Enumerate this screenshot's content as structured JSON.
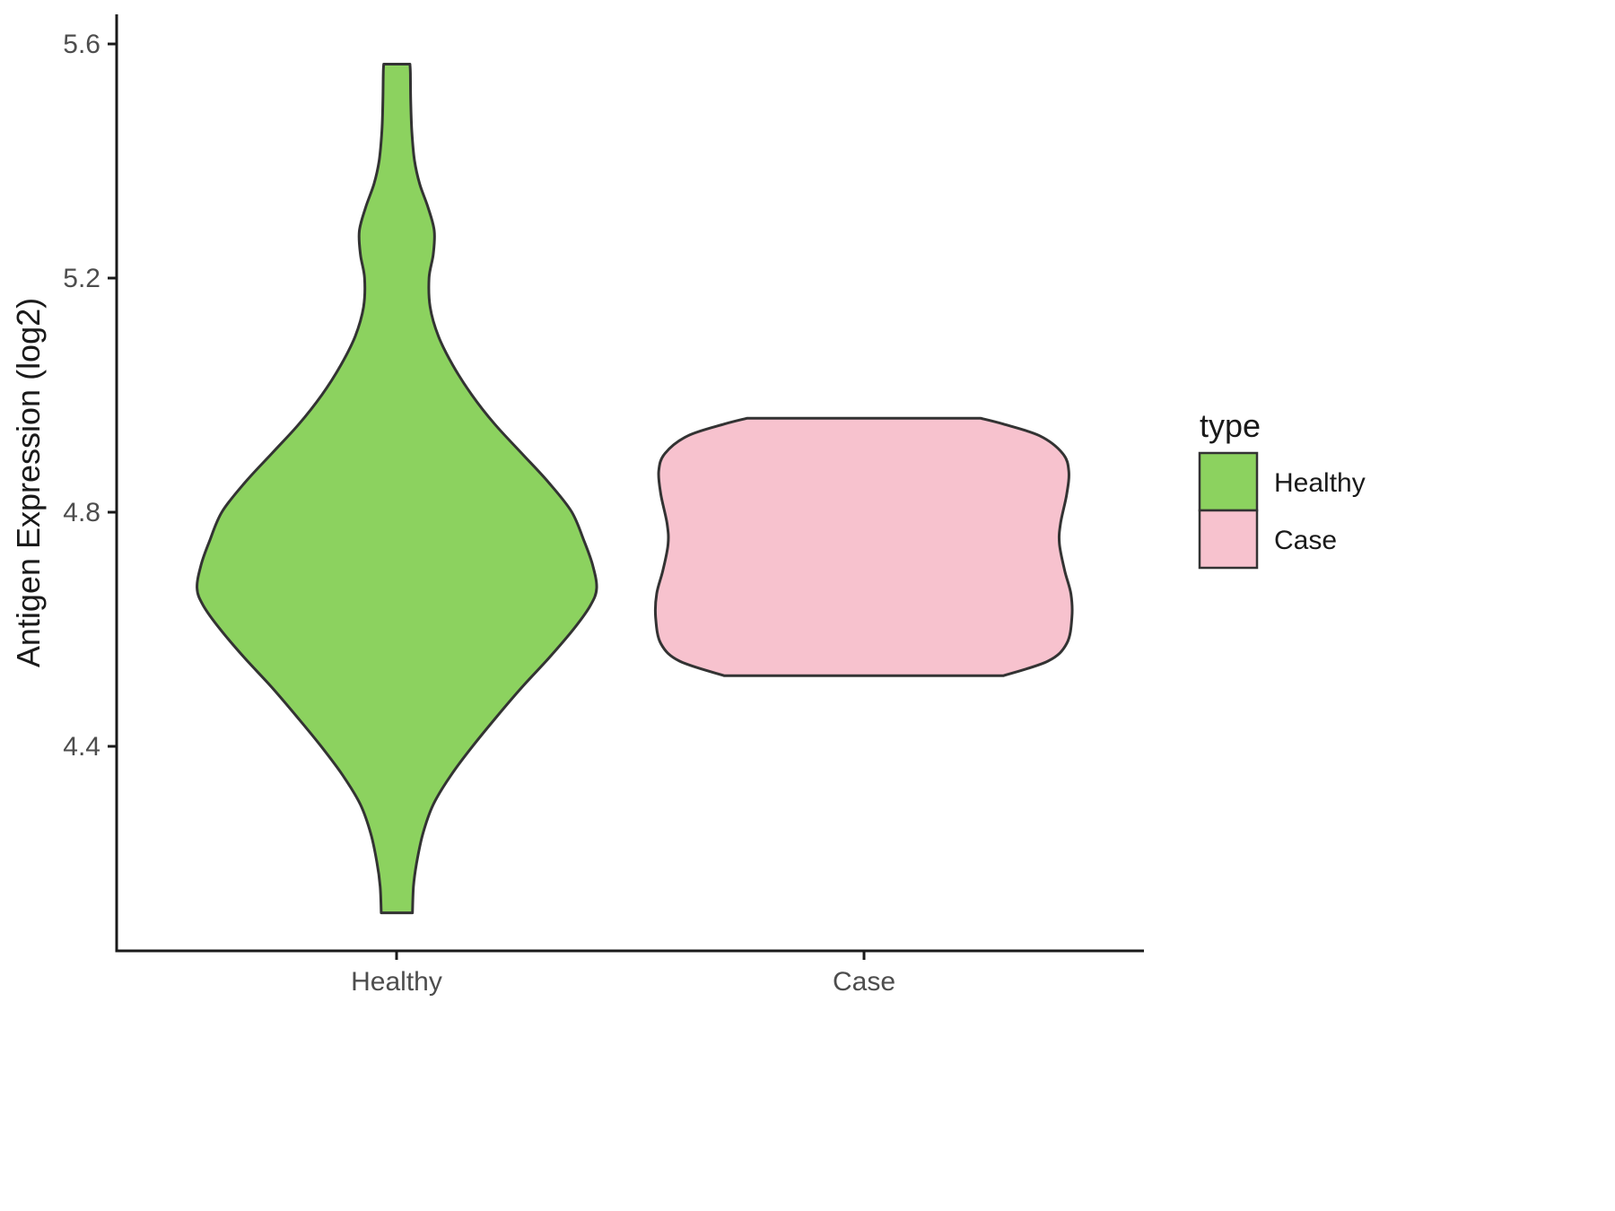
{
  "chart_data": {
    "type": "violin",
    "title": "",
    "xlabel": "",
    "ylabel": "Antigen Expression (log2)",
    "categories": [
      "Healthy",
      "Case"
    ],
    "ylim": [
      4.05,
      5.65
    ],
    "yticks": [
      4.4,
      4.8,
      5.2,
      5.6
    ],
    "ytick_labels": [
      "4.4",
      "4.8",
      "5.2",
      "5.6"
    ],
    "grid": false,
    "background": "#ffffff",
    "outline_color": "#333333",
    "axis_color": "#1a1a1a",
    "legend": {
      "title": "type",
      "position": "right",
      "entries": [
        {
          "label": "Healthy",
          "color": "#8CD25F"
        },
        {
          "label": "Case",
          "color": "#F7C2CE"
        }
      ]
    },
    "profile_format": "[y_value_log2, half_width_fraction_of_max]",
    "series": [
      {
        "name": "Healthy",
        "color": "#8CD25F",
        "value_range": [
          4.12,
          5.57
        ],
        "peak_y": 4.67,
        "profile": [
          [
            4.115,
            0.075
          ],
          [
            4.16,
            0.08
          ],
          [
            4.2,
            0.095
          ],
          [
            4.25,
            0.125
          ],
          [
            4.3,
            0.175
          ],
          [
            4.35,
            0.26
          ],
          [
            4.4,
            0.365
          ],
          [
            4.45,
            0.48
          ],
          [
            4.5,
            0.6
          ],
          [
            4.55,
            0.73
          ],
          [
            4.6,
            0.85
          ],
          [
            4.64,
            0.93
          ],
          [
            4.67,
            0.96
          ],
          [
            4.71,
            0.94
          ],
          [
            4.75,
            0.9
          ],
          [
            4.8,
            0.84
          ],
          [
            4.85,
            0.73
          ],
          [
            4.9,
            0.6
          ],
          [
            4.95,
            0.47
          ],
          [
            5.0,
            0.36
          ],
          [
            5.05,
            0.27
          ],
          [
            5.1,
            0.2
          ],
          [
            5.15,
            0.16
          ],
          [
            5.2,
            0.155
          ],
          [
            5.24,
            0.175
          ],
          [
            5.28,
            0.18
          ],
          [
            5.32,
            0.15
          ],
          [
            5.36,
            0.11
          ],
          [
            5.4,
            0.085
          ],
          [
            5.45,
            0.072
          ],
          [
            5.5,
            0.067
          ],
          [
            5.55,
            0.065
          ],
          [
            5.565,
            0.063
          ]
        ]
      },
      {
        "name": "Case",
        "color": "#F7C2CE",
        "value_range": [
          4.52,
          4.96
        ],
        "peak_y": 4.62,
        "profile": [
          [
            4.52,
            0.67
          ],
          [
            4.545,
            0.885
          ],
          [
            4.575,
            0.975
          ],
          [
            4.62,
            1.0
          ],
          [
            4.66,
            0.995
          ],
          [
            4.7,
            0.965
          ],
          [
            4.745,
            0.94
          ],
          [
            4.78,
            0.945
          ],
          [
            4.83,
            0.975
          ],
          [
            4.87,
            0.985
          ],
          [
            4.9,
            0.955
          ],
          [
            4.93,
            0.845
          ],
          [
            4.95,
            0.67
          ],
          [
            4.96,
            0.56
          ]
        ]
      }
    ]
  }
}
